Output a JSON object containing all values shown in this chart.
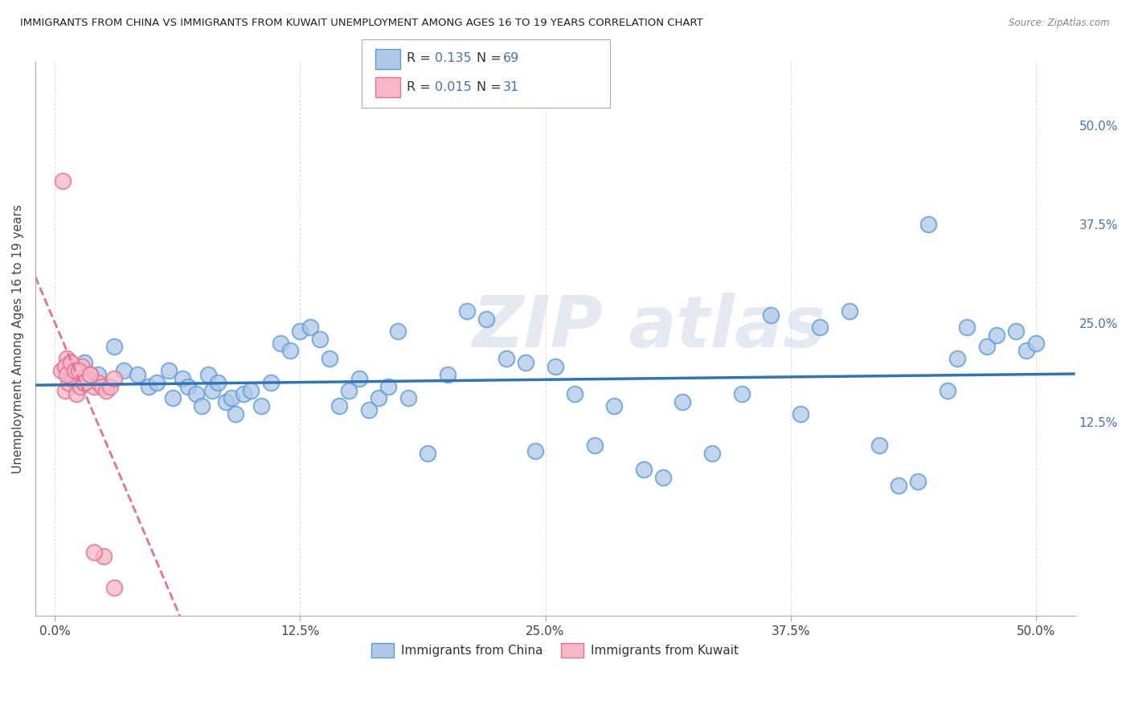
{
  "title": "IMMIGRANTS FROM CHINA VS IMMIGRANTS FROM KUWAIT UNEMPLOYMENT AMONG AGES 16 TO 19 YEARS CORRELATION CHART",
  "source": "Source: ZipAtlas.com",
  "ylabel": "Unemployment Among Ages 16 to 19 years",
  "legend_label_1": "Immigrants from China",
  "legend_label_2": "Immigrants from Kuwait",
  "R1": 0.135,
  "N1": 69,
  "R2": 0.015,
  "N2": 31,
  "color_china": "#aec8e8",
  "color_kuwait": "#f4b8c8",
  "color_china_edge": "#5b9bd5",
  "color_kuwait_edge": "#e87090",
  "color_china_line": "#2e75b6",
  "color_kuwait_line": "#e87090",
  "xlim": [
    -1.0,
    52.0
  ],
  "ylim": [
    -12.0,
    58.0
  ],
  "xticks": [
    0.0,
    12.5,
    25.0,
    37.5,
    50.0
  ],
  "yticks_right": [
    12.5,
    25.0,
    37.5,
    50.0
  ],
  "xticklabels": [
    "0.0%",
    "12.5%",
    "25.0%",
    "37.5%",
    "50.0%"
  ],
  "yticklabels_right": [
    "12.5%",
    "25.0%",
    "37.5%",
    "50.0%"
  ],
  "china_x": [
    1.5,
    2.2,
    3.0,
    3.5,
    4.2,
    4.8,
    5.2,
    5.8,
    6.0,
    6.5,
    6.8,
    7.2,
    7.5,
    7.8,
    8.0,
    8.3,
    8.7,
    9.0,
    9.2,
    9.6,
    10.0,
    10.5,
    11.0,
    11.5,
    12.0,
    12.5,
    13.0,
    13.5,
    14.0,
    14.5,
    15.0,
    15.5,
    16.0,
    16.5,
    17.0,
    17.5,
    18.0,
    19.0,
    20.0,
    21.0,
    22.0,
    23.0,
    24.0,
    24.5,
    25.5,
    26.5,
    27.5,
    28.5,
    30.0,
    31.0,
    32.0,
    33.5,
    35.0,
    36.5,
    38.0,
    39.0,
    40.5,
    42.0,
    43.0,
    44.0,
    45.5,
    46.5,
    47.5,
    48.0,
    49.0,
    49.5,
    50.0,
    46.0,
    44.5
  ],
  "china_y": [
    20.0,
    18.5,
    22.0,
    19.0,
    18.5,
    17.0,
    17.5,
    19.0,
    15.5,
    18.0,
    17.0,
    16.0,
    14.5,
    18.5,
    16.5,
    17.5,
    15.0,
    15.5,
    13.5,
    16.0,
    16.5,
    14.5,
    17.5,
    22.5,
    21.5,
    24.0,
    24.5,
    23.0,
    20.5,
    14.5,
    16.5,
    18.0,
    14.0,
    15.5,
    17.0,
    24.0,
    15.5,
    8.5,
    18.5,
    26.5,
    25.5,
    20.5,
    20.0,
    8.8,
    19.5,
    16.0,
    9.5,
    14.5,
    6.5,
    5.5,
    15.0,
    8.5,
    16.0,
    26.0,
    13.5,
    24.5,
    26.5,
    9.5,
    4.5,
    5.0,
    16.5,
    24.5,
    22.0,
    23.5,
    24.0,
    21.5,
    22.5,
    20.5,
    37.5
  ],
  "kuwait_x": [
    0.4,
    0.6,
    0.8,
    1.0,
    1.2,
    1.4,
    1.6,
    1.8,
    2.0,
    2.2,
    2.4,
    2.6,
    2.8,
    3.0,
    0.5,
    0.7,
    0.9,
    1.1,
    1.3,
    1.5,
    0.3,
    0.5,
    0.6,
    0.8,
    1.0,
    1.2,
    1.5,
    1.8,
    2.5,
    3.0,
    2.0
  ],
  "kuwait_y": [
    43.0,
    20.5,
    20.0,
    18.0,
    17.5,
    19.5,
    18.0,
    18.5,
    17.0,
    17.5,
    17.0,
    16.5,
    17.0,
    18.0,
    16.5,
    17.5,
    18.0,
    16.0,
    17.0,
    17.5,
    19.0,
    19.5,
    18.5,
    20.0,
    19.0,
    19.0,
    17.5,
    18.5,
    -4.5,
    -8.5,
    -4.0
  ],
  "watermark_line1": "ZIP",
  "watermark_line2": "atlas",
  "background_color": "#ffffff",
  "grid_color": "#e0e0e0"
}
